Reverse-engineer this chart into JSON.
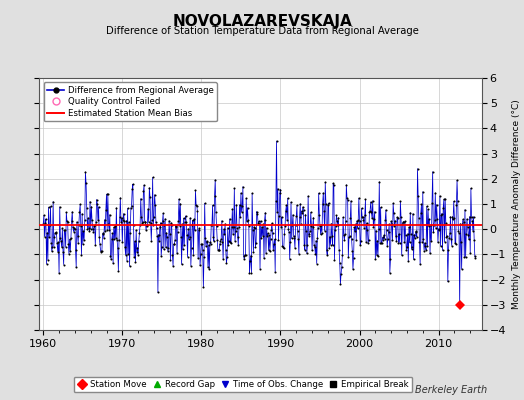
{
  "title": "NOVOLAZAREVSKAJA",
  "subtitle": "Difference of Station Temperature Data from Regional Average",
  "ylabel_right": "Monthly Temperature Anomaly Difference (°C)",
  "xlim": [
    1959.5,
    2015.5
  ],
  "ylim": [
    -4,
    6
  ],
  "yticks": [
    -4,
    -3,
    -2,
    -1,
    0,
    1,
    2,
    3,
    4,
    5,
    6
  ],
  "xticks": [
    1960,
    1970,
    1980,
    1990,
    2000,
    2010
  ],
  "mean_bias": 0.18,
  "background_color": "#e0e0e0",
  "plot_bg_color": "#ffffff",
  "line_color": "#0000cc",
  "bias_color": "#ff0000",
  "marker_color": "#000000",
  "qc_color": "#ff69b4",
  "station_move_year": 2012.7,
  "station_move_value": -3.0,
  "big_peak_year": 1989.5,
  "big_peak_value": 3.5,
  "footer_text": "Berkeley Earth",
  "legend1_items": [
    "Difference from Regional Average",
    "Quality Control Failed",
    "Estimated Station Mean Bias"
  ],
  "legend2_items": [
    "Station Move",
    "Record Gap",
    "Time of Obs. Change",
    "Empirical Break"
  ]
}
